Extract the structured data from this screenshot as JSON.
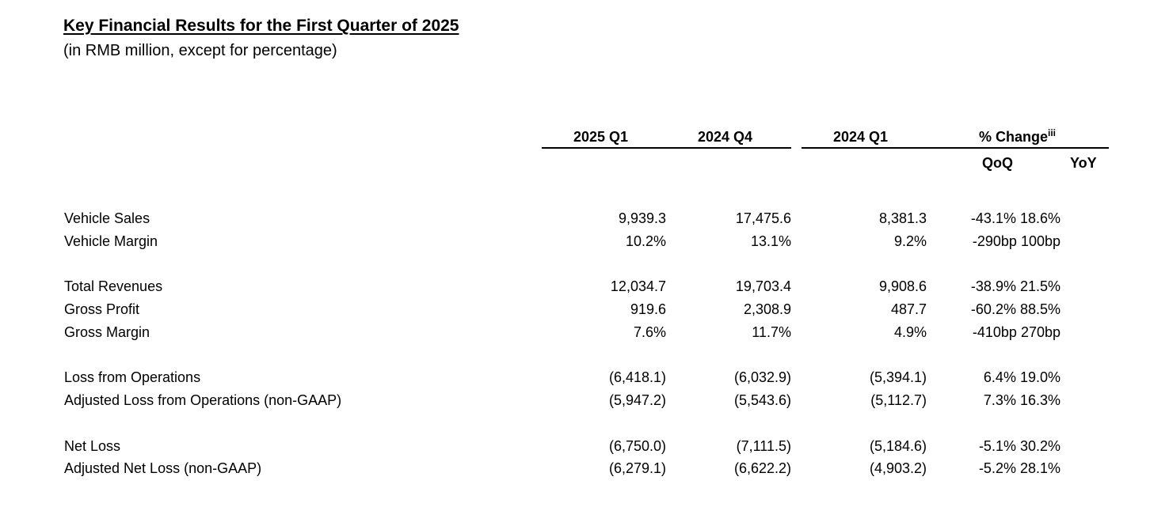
{
  "title": "Key Financial Results for the First Quarter of 2025",
  "subtitle": "(in RMB million, except for percentage)",
  "columns": {
    "q1_2025": "2025 Q1",
    "q4_2024": "2024 Q4",
    "q1_2024": "2024 Q1",
    "change": "% Change",
    "change_note": "iii",
    "qoq": "QoQ",
    "yoy": "YoY"
  },
  "rows": [
    {
      "label": "Vehicle Sales",
      "q1_2025": "9,939.3",
      "q4_2024": "17,475.6",
      "q1_2024": "8,381.3",
      "change": "-43.1% 18.6%"
    },
    {
      "label": "Vehicle Margin",
      "q1_2025": "10.2%",
      "q4_2024": "13.1%",
      "q1_2024": "9.2%",
      "change": "-290bp 100bp"
    },
    {
      "label": "Total Revenues",
      "q1_2025": "12,034.7",
      "q4_2024": "19,703.4",
      "q1_2024": "9,908.6",
      "change": "-38.9% 21.5%"
    },
    {
      "label": "Gross Profit",
      "q1_2025": "919.6",
      "q4_2024": "2,308.9",
      "q1_2024": "487.7",
      "change": "-60.2% 88.5%"
    },
    {
      "label": "Gross Margin",
      "q1_2025": "7.6%",
      "q4_2024": "11.7%",
      "q1_2024": "4.9%",
      "change": "-410bp 270bp"
    },
    {
      "label": "Loss from Operations",
      "q1_2025": "(6,418.1)",
      "q4_2024": "(6,032.9)",
      "q1_2024": "(5,394.1)",
      "change": "6.4% 19.0%"
    },
    {
      "label": "Adjusted Loss from Operations (non-GAAP)",
      "q1_2025": "(5,947.2)",
      "q4_2024": "(5,543.6)",
      "q1_2024": "(5,112.7)",
      "change": "7.3% 16.3%"
    },
    {
      "label": "Net Loss",
      "q1_2025": "(6,750.0)",
      "q4_2024": "(7,111.5)",
      "q1_2024": "(5,184.6)",
      "change": "-5.1% 30.2%"
    },
    {
      "label": "Adjusted Net Loss (non-GAAP)",
      "q1_2025": "(6,279.1)",
      "q4_2024": "(6,622.2)",
      "q1_2024": "(4,903.2)",
      "change": "-5.2% 28.1%"
    }
  ]
}
